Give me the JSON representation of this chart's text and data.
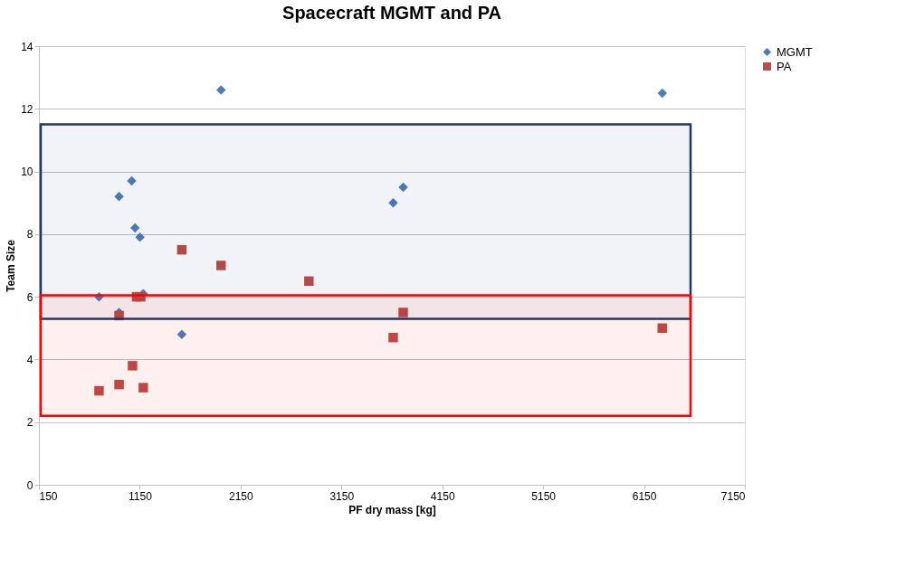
{
  "chart_data": {
    "type": "scatter",
    "title": "Spacecraft MGMT and PA",
    "xlabel": "PF dry mass [kg]",
    "ylabel": "Team Size",
    "xlim": [
      150,
      7150
    ],
    "xticks": [
      150,
      1150,
      2150,
      3150,
      4150,
      5150,
      6150,
      7150
    ],
    "ylim": [
      0,
      14
    ],
    "yticks": [
      0,
      2,
      4,
      6,
      8,
      10,
      12,
      14
    ],
    "grid": "y",
    "legend": "right",
    "series": [
      {
        "name": "MGMT",
        "color": "#4a7ebb",
        "marker": "diamond",
        "x": [
          746,
          945,
          1070,
          1103,
          1152,
          1185,
          945,
          1567,
          1956,
          3663,
          3762,
          6331
        ],
        "values": [
          6.0,
          9.2,
          9.7,
          8.2,
          7.9,
          6.1,
          5.5,
          4.8,
          12.6,
          9.0,
          9.5,
          12.5
        ]
      },
      {
        "name": "PA",
        "color": "#be4b48",
        "marker": "square",
        "x": [
          746,
          945,
          945,
          1078,
          1119,
          1160,
          1185,
          1567,
          1956,
          2827,
          3663,
          3762,
          6331
        ],
        "values": [
          3.0,
          3.2,
          5.4,
          3.8,
          6.0,
          6.0,
          3.1,
          7.5,
          7.0,
          6.5,
          4.7,
          5.5,
          5.0
        ]
      }
    ],
    "bands": [
      {
        "axis": "y",
        "from": 5.3,
        "to": 11.5,
        "color": "#1f3864"
      },
      {
        "axis": "y",
        "from": 2.2,
        "to": 6.05,
        "color": "#ff0000"
      }
    ]
  }
}
